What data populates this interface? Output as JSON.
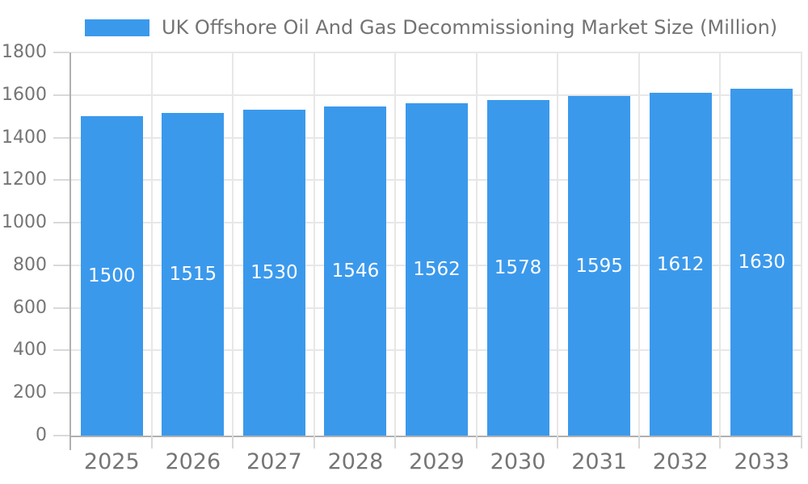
{
  "legend": {
    "label": "UK Offshore Oil And Gas Decommissioning Market Size (Million)"
  },
  "chart_data": {
    "type": "bar",
    "title": "UK Offshore Oil And Gas Decommissioning Market Size (Million)",
    "categories": [
      "2025",
      "2026",
      "2027",
      "2028",
      "2029",
      "2030",
      "2031",
      "2032",
      "2033"
    ],
    "values": [
      1500,
      1515,
      1530,
      1546,
      1562,
      1578,
      1595,
      1612,
      1630
    ],
    "ylim": [
      0,
      1800
    ],
    "ytick_step": 200,
    "ytick_labels": [
      "0",
      "200",
      "400",
      "600",
      "800",
      "1000",
      "1200",
      "1400",
      "1600",
      "1800"
    ],
    "grid": true,
    "legend_position": "top",
    "colors": {
      "bar": "#3b99ec",
      "value_label": "#ffffff",
      "axis_line": "#b0b0b0",
      "gridline": "#e7e7e7",
      "tick": "#d9d9d9",
      "axis_text": "#757575",
      "legend_text": "#737373"
    }
  }
}
